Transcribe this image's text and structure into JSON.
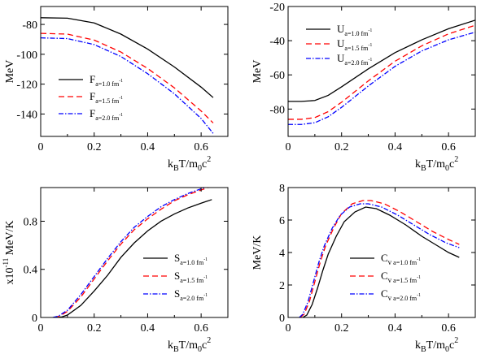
{
  "chart_data": [
    {
      "id": "F",
      "type": "line",
      "ylabel": "MeV",
      "xlabel": {
        "k": "k",
        "B": "B",
        "T": "T/m",
        "zero": "0",
        "c": "c",
        "two": "2"
      },
      "xlim": [
        0,
        0.7
      ],
      "ylim": [
        -155,
        -68
      ],
      "xticks": [
        "0",
        "0.2",
        "0.4",
        "0.6"
      ],
      "xtick_values": [
        0,
        0.2,
        0.4,
        0.6
      ],
      "yticks": [
        "-80",
        "-100",
        "-120",
        "-140"
      ],
      "ytick_values": [
        -80,
        -100,
        -120,
        -140
      ],
      "legend": {
        "position": "left-middle"
      },
      "series": [
        {
          "name": "F",
          "sub": "a=1.0 fm",
          "sup": "-1",
          "color": "#000000",
          "dash": "",
          "x": [
            0,
            0.1,
            0.2,
            0.3,
            0.4,
            0.5,
            0.6,
            0.645
          ],
          "y": [
            -75.5,
            -75.8,
            -79,
            -86.5,
            -96.5,
            -108.5,
            -122,
            -129
          ]
        },
        {
          "name": "F",
          "sub": "a=1.5 fm",
          "sup": "-1",
          "color": "#ff0000",
          "dash": "7,4",
          "x": [
            0,
            0.1,
            0.2,
            0.3,
            0.4,
            0.5,
            0.6,
            0.645
          ],
          "y": [
            -86,
            -86.5,
            -90.5,
            -98.5,
            -109.5,
            -122.5,
            -138,
            -146
          ]
        },
        {
          "name": "F",
          "sub": "a=2.0 fm",
          "sup": "-1",
          "color": "#0000ff",
          "dash": "6,2,1.5,2",
          "x": [
            0,
            0.1,
            0.2,
            0.3,
            0.4,
            0.5,
            0.6,
            0.645
          ],
          "y": [
            -89,
            -89.5,
            -93.5,
            -101.5,
            -113,
            -126.5,
            -143,
            -153
          ]
        }
      ]
    },
    {
      "id": "U",
      "type": "line",
      "ylabel": "MeV",
      "xlabel": {
        "k": "k",
        "B": "B",
        "T": "T/m",
        "zero": "0",
        "c": "c",
        "two": "2"
      },
      "xlim": [
        0,
        0.7
      ],
      "ylim": [
        -96,
        -20
      ],
      "xticks": [
        "0",
        "0.2",
        "0.4",
        "0.6"
      ],
      "xtick_values": [
        0,
        0.2,
        0.4,
        0.6
      ],
      "yticks": [
        "-20",
        "-40",
        "-60",
        "-80"
      ],
      "ytick_values": [
        -20,
        -40,
        -60,
        -80
      ],
      "legend": {
        "position": "top-right"
      },
      "series": [
        {
          "name": "U",
          "sub": "a=1.0 fm",
          "sup": "-1",
          "color": "#000000",
          "dash": "",
          "x": [
            0,
            0.05,
            0.1,
            0.15,
            0.2,
            0.3,
            0.4,
            0.5,
            0.6,
            0.7
          ],
          "y": [
            -75.5,
            -75.5,
            -75,
            -72,
            -67,
            -56.5,
            -47,
            -39.5,
            -33,
            -28
          ]
        },
        {
          "name": "U",
          "sub": "a=1.5 fm",
          "sup": "-1",
          "color": "#ff0000",
          "dash": "7,4",
          "x": [
            0,
            0.05,
            0.1,
            0.15,
            0.2,
            0.3,
            0.4,
            0.5,
            0.6,
            0.7
          ],
          "y": [
            -86,
            -86,
            -85,
            -81.5,
            -76,
            -63.5,
            -52,
            -43,
            -36,
            -31
          ]
        },
        {
          "name": "U",
          "sub": "a=2.0 fm",
          "sup": "-1",
          "color": "#0000ff",
          "dash": "6,2,1.5,2",
          "x": [
            0,
            0.05,
            0.1,
            0.15,
            0.2,
            0.3,
            0.4,
            0.5,
            0.6,
            0.7
          ],
          "y": [
            -89,
            -89,
            -88,
            -84.5,
            -79,
            -66.5,
            -55,
            -46,
            -39.5,
            -35
          ]
        }
      ]
    },
    {
      "id": "S",
      "type": "line",
      "ylabel": "x10",
      "ylabel_sup": "-11",
      "ylabel_unit": "MeV/K",
      "xlabel": {
        "k": "k",
        "B": "B",
        "T": "T/m",
        "zero": "0",
        "c": "c",
        "two": "2"
      },
      "xlim": [
        0,
        0.7
      ],
      "ylim": [
        0,
        1.08
      ],
      "xticks": [
        "0",
        "0.2",
        "0.4",
        "0.6"
      ],
      "xtick_values": [
        0,
        0.2,
        0.4,
        0.6
      ],
      "yticks": [
        "0",
        "0.4",
        "0.8"
      ],
      "ytick_values": [
        0,
        0.4,
        0.8
      ],
      "legend": {
        "position": "bottom-right"
      },
      "series": [
        {
          "name": "S",
          "sub": "a=1.0 fm",
          "sup": "-1",
          "color": "#000000",
          "dash": "",
          "x": [
            0.06,
            0.08,
            0.1,
            0.15,
            0.2,
            0.25,
            0.3,
            0.35,
            0.4,
            0.45,
            0.5,
            0.55,
            0.6,
            0.64
          ],
          "y": [
            0,
            0.005,
            0.02,
            0.1,
            0.22,
            0.35,
            0.5,
            0.62,
            0.72,
            0.8,
            0.86,
            0.91,
            0.95,
            0.98
          ]
        },
        {
          "name": "S",
          "sub": "a=1.5 fm",
          "sup": "-1",
          "color": "#ff0000",
          "dash": "7,4",
          "x": [
            0.05,
            0.07,
            0.1,
            0.15,
            0.2,
            0.25,
            0.3,
            0.35,
            0.4,
            0.45,
            0.5,
            0.55,
            0.6,
            0.64
          ],
          "y": [
            0,
            0.01,
            0.05,
            0.17,
            0.32,
            0.47,
            0.61,
            0.73,
            0.82,
            0.9,
            0.97,
            1.02,
            1.06,
            1.09
          ]
        },
        {
          "name": "S",
          "sub": "a=2.0 fm",
          "sup": "-1",
          "color": "#0000ff",
          "dash": "6,2,1.5,2",
          "x": [
            0.045,
            0.065,
            0.1,
            0.15,
            0.2,
            0.25,
            0.3,
            0.35,
            0.4,
            0.45,
            0.5,
            0.55,
            0.6,
            0.64
          ],
          "y": [
            0,
            0.01,
            0.06,
            0.19,
            0.34,
            0.49,
            0.63,
            0.75,
            0.84,
            0.92,
            0.98,
            1.03,
            1.07,
            1.1
          ]
        }
      ]
    },
    {
      "id": "Cv",
      "type": "line",
      "ylabel": "MeV/K",
      "xlabel": {
        "k": "k",
        "B": "B",
        "T": "T/m",
        "zero": "0",
        "c": "c",
        "two": "2"
      },
      "xlim": [
        0,
        0.7
      ],
      "ylim": [
        0,
        8
      ],
      "xticks": [
        "0",
        "0.2",
        "0.4",
        "0.6"
      ],
      "xtick_values": [
        0,
        0.2,
        0.4,
        0.6
      ],
      "yticks": [
        "0",
        "2",
        "4",
        "6",
        "8"
      ],
      "ytick_values": [
        0,
        2,
        4,
        6,
        8
      ],
      "legend": {
        "position": "bottom-right"
      },
      "series": [
        {
          "name": "C",
          "sub2": "v",
          "sub": "a=1.0 fm",
          "sup": "-1",
          "color": "#000000",
          "dash": "",
          "x": [
            0.055,
            0.07,
            0.09,
            0.11,
            0.13,
            0.15,
            0.18,
            0.21,
            0.25,
            0.29,
            0.33,
            0.38,
            0.44,
            0.5,
            0.56,
            0.6,
            0.64
          ],
          "y": [
            0,
            0.15,
            0.8,
            1.8,
            2.9,
            3.9,
            5.0,
            5.9,
            6.5,
            6.8,
            6.7,
            6.3,
            5.7,
            5.0,
            4.4,
            4.0,
            3.7
          ]
        },
        {
          "name": "C",
          "sub2": "v",
          "sub": "a=1.5 fm",
          "sup": "-1",
          "color": "#ff0000",
          "dash": "7,4",
          "x": [
            0.045,
            0.06,
            0.08,
            0.1,
            0.12,
            0.14,
            0.17,
            0.2,
            0.24,
            0.28,
            0.31,
            0.36,
            0.42,
            0.48,
            0.54,
            0.6,
            0.64
          ],
          "y": [
            0,
            0.2,
            1.0,
            2.2,
            3.4,
            4.4,
            5.5,
            6.4,
            7.0,
            7.2,
            7.2,
            7.0,
            6.5,
            5.9,
            5.3,
            4.8,
            4.5
          ]
        },
        {
          "name": "C",
          "sub2": "v",
          "sub": "a=2.0 fm",
          "sup": "-1",
          "color": "#0000ff",
          "dash": "6,2,1.5,2",
          "x": [
            0.042,
            0.055,
            0.075,
            0.095,
            0.115,
            0.135,
            0.165,
            0.195,
            0.23,
            0.27,
            0.3,
            0.35,
            0.41,
            0.47,
            0.53,
            0.59,
            0.64
          ],
          "y": [
            0,
            0.2,
            1.0,
            2.2,
            3.4,
            4.4,
            5.5,
            6.3,
            6.8,
            7.0,
            7.0,
            6.8,
            6.3,
            5.7,
            5.1,
            4.6,
            4.3
          ]
        }
      ]
    }
  ]
}
